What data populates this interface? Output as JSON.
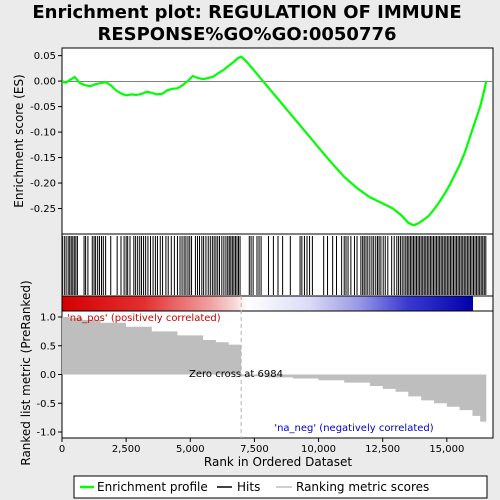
{
  "chart_data": {
    "type": "line",
    "title_line1": "Enrichment plot: REGULATION OF IMMUNE",
    "title_line2": "RESPONSE%GO%GO:0050776",
    "ylabel_top": "Enrichment score (ES)",
    "ylabel_bottom": "Ranked list metric (PreRanked)",
    "xlabel": "Rank in Ordered Dataset",
    "x_range": [
      0,
      16800
    ],
    "es_ylim": [
      -0.3,
      0.065
    ],
    "metric_ylim": [
      -1.0,
      1.0
    ],
    "es_ticks": [
      0.05,
      0.0,
      -0.05,
      -0.1,
      -0.15,
      -0.2,
      -0.25
    ],
    "es_tick_labels": [
      "0.05",
      "0.00",
      "-0.05",
      "-0.10",
      "-0.15",
      "-0.20",
      "-0.25"
    ],
    "metric_ticks": [
      1.0,
      0.5,
      0.0,
      -0.5,
      -1.0
    ],
    "metric_tick_labels": [
      "1.0",
      "0.5",
      "0.0",
      "-0.5",
      "-1.0"
    ],
    "x_ticks": [
      0,
      2500,
      5000,
      7500,
      10000,
      12500,
      15000
    ],
    "x_tick_labels": [
      "0",
      "2,500",
      "5,000",
      "7,500",
      "10,000",
      "12,500",
      "15,000"
    ],
    "enrichment_profile": [
      [
        0,
        0.0
      ],
      [
        150,
        -0.003
      ],
      [
        300,
        0.002
      ],
      [
        500,
        0.008
      ],
      [
        700,
        -0.004
      ],
      [
        900,
        -0.008
      ],
      [
        1100,
        -0.01
      ],
      [
        1300,
        -0.006
      ],
      [
        1500,
        -0.004
      ],
      [
        1700,
        -0.002
      ],
      [
        1900,
        -0.008
      ],
      [
        2100,
        -0.018
      ],
      [
        2300,
        -0.024
      ],
      [
        2500,
        -0.028
      ],
      [
        2700,
        -0.026
      ],
      [
        2900,
        -0.027
      ],
      [
        3100,
        -0.025
      ],
      [
        3300,
        -0.021
      ],
      [
        3500,
        -0.023
      ],
      [
        3700,
        -0.026
      ],
      [
        3900,
        -0.025
      ],
      [
        4100,
        -0.018
      ],
      [
        4300,
        -0.015
      ],
      [
        4500,
        -0.014
      ],
      [
        4700,
        -0.008
      ],
      [
        4900,
        0.0
      ],
      [
        5100,
        0.01
      ],
      [
        5300,
        0.006
      ],
      [
        5500,
        0.004
      ],
      [
        5700,
        0.006
      ],
      [
        5900,
        0.009
      ],
      [
        6100,
        0.016
      ],
      [
        6300,
        0.022
      ],
      [
        6500,
        0.03
      ],
      [
        6700,
        0.038
      ],
      [
        6850,
        0.045
      ],
      [
        6984,
        0.048
      ],
      [
        7200,
        0.038
      ],
      [
        7500,
        0.02
      ],
      [
        8000,
        -0.01
      ],
      [
        8500,
        -0.04
      ],
      [
        9000,
        -0.07
      ],
      [
        9500,
        -0.1
      ],
      [
        10000,
        -0.13
      ],
      [
        10500,
        -0.16
      ],
      [
        11000,
        -0.188
      ],
      [
        11500,
        -0.21
      ],
      [
        12000,
        -0.228
      ],
      [
        12500,
        -0.24
      ],
      [
        12900,
        -0.25
      ],
      [
        13200,
        -0.262
      ],
      [
        13500,
        -0.278
      ],
      [
        13700,
        -0.283
      ],
      [
        13900,
        -0.279
      ],
      [
        14100,
        -0.272
      ],
      [
        14300,
        -0.264
      ],
      [
        14500,
        -0.252
      ],
      [
        14700,
        -0.238
      ],
      [
        14900,
        -0.222
      ],
      [
        15100,
        -0.205
      ],
      [
        15300,
        -0.185
      ],
      [
        15500,
        -0.165
      ],
      [
        15700,
        -0.14
      ],
      [
        15900,
        -0.11
      ],
      [
        16100,
        -0.08
      ],
      [
        16300,
        -0.05
      ],
      [
        16450,
        -0.02
      ],
      [
        16540,
        0.0
      ]
    ],
    "hits": [
      15,
      90,
      160,
      240,
      300,
      360,
      420,
      480,
      540,
      600,
      860,
      920,
      1010,
      1180,
      1250,
      1310,
      1390,
      1460,
      1540,
      1610,
      1700,
      1900,
      2150,
      2300,
      2420,
      2500,
      2560,
      2650,
      2800,
      2870,
      2950,
      3030,
      3100,
      3180,
      3260,
      3350,
      3450,
      3550,
      3640,
      3720,
      3830,
      3920,
      4050,
      4140,
      4260,
      4380,
      4500,
      4600,
      4680,
      4760,
      4830,
      4910,
      4980,
      5050,
      5200,
      5280,
      5360,
      5450,
      5520,
      5610,
      5700,
      5780,
      5860,
      5930,
      6000,
      6070,
      6140,
      6230,
      6310,
      6390,
      6460,
      6520,
      6580,
      6640,
      6700,
      6760,
      6820,
      6880,
      6940,
      7300,
      7370,
      7450,
      7600,
      7680,
      7760,
      8050,
      8240,
      8420,
      8600,
      8900,
      9280,
      9350,
      9450,
      9550,
      9650,
      9760,
      10200,
      10350,
      10550,
      10700,
      10900,
      11000,
      11070,
      11150,
      11260,
      11400,
      11500,
      11650,
      11720,
      11780,
      11850,
      11920,
      12000,
      12080,
      12150,
      12230,
      12300,
      12360,
      12430,
      12520,
      12600,
      12700,
      12850,
      12950,
      13050,
      13120,
      13190,
      13260,
      13330,
      13400,
      13460,
      13520,
      13580,
      13640,
      13700,
      13760,
      13820,
      13880,
      13940,
      14000,
      14060,
      14120,
      14180,
      14240,
      14300,
      14360,
      14420,
      14480,
      14540,
      14600,
      14660,
      14720,
      14780,
      14840,
      14900,
      14960,
      15020,
      15080,
      15140,
      15200,
      15260,
      15320,
      15380,
      15440,
      15500,
      15560,
      15620,
      15680,
      15740,
      15800,
      15860,
      15920,
      15980,
      16040,
      16100,
      16160,
      16220,
      16280,
      16340,
      16400,
      16460,
      16520
    ],
    "ranking_metric": [
      [
        0,
        1.0
      ],
      [
        300,
        0.98
      ],
      [
        800,
        0.95
      ],
      [
        1500,
        0.9
      ],
      [
        2500,
        0.83
      ],
      [
        3500,
        0.75
      ],
      [
        4500,
        0.68
      ],
      [
        5500,
        0.6
      ],
      [
        6000,
        0.56
      ],
      [
        6500,
        0.52
      ],
      [
        6984,
        0.0
      ],
      [
        7000,
        -0.03
      ],
      [
        8000,
        -0.05
      ],
      [
        9000,
        -0.07
      ],
      [
        10000,
        -0.1
      ],
      [
        11000,
        -0.14
      ],
      [
        12000,
        -0.2
      ],
      [
        12500,
        -0.25
      ],
      [
        13000,
        -0.3
      ],
      [
        13500,
        -0.38
      ],
      [
        14000,
        -0.45
      ],
      [
        14500,
        -0.5
      ],
      [
        15000,
        -0.56
      ],
      [
        15500,
        -0.62
      ],
      [
        16000,
        -0.72
      ],
      [
        16300,
        -0.82
      ],
      [
        16540,
        -0.98
      ]
    ],
    "zero_cross_label": "Zero cross at 6984",
    "zero_cross": 6984,
    "pos_label": "'na_pos' (positively correlated)",
    "neg_label": "'na_neg' (negatively correlated)",
    "legend": [
      "Enrichment profile",
      "Hits",
      "Ranking metric scores"
    ],
    "colors": {
      "profile": "#00ff00",
      "hits": "#000000",
      "metric_fill": "#bebebe",
      "pos_text": "#cc0000",
      "neg_text": "#0000cc",
      "zero_line": "#b4b4b4"
    }
  }
}
